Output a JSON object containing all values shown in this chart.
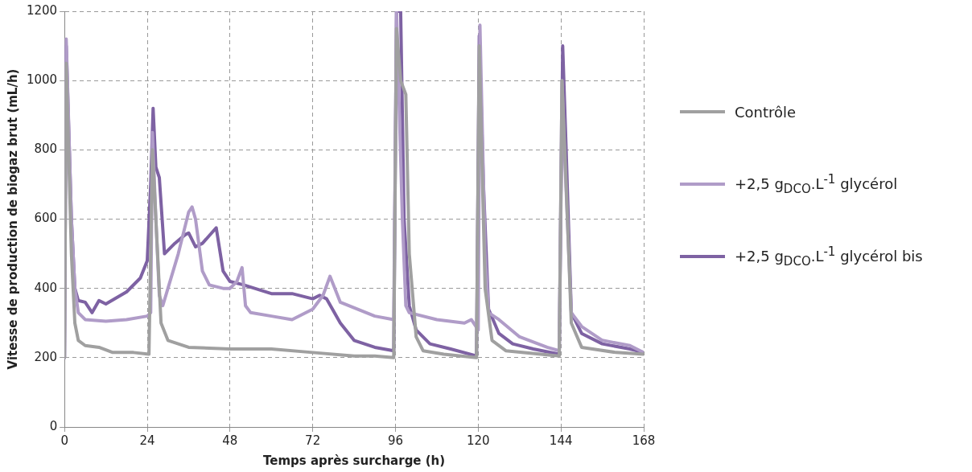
{
  "chart_data": {
    "type": "line",
    "xlabel": "Temps après surcharge (h)",
    "ylabel": "Vitesse de production de biogaz brut (mL/h)",
    "xlim": [
      0,
      168
    ],
    "xticks": [
      0,
      24,
      48,
      72,
      96,
      120,
      144,
      168
    ],
    "ylim": [
      0,
      1200
    ],
    "yticks": [
      0,
      200,
      400,
      600,
      800,
      1000,
      1200
    ],
    "grid": true,
    "legend": "right",
    "marker": "none",
    "line_style": "solid",
    "series": [
      {
        "name": "Contrôle",
        "color": "#a0a0a0",
        "x": [
          0,
          0.5,
          2,
          3,
          4,
          6,
          10,
          14,
          20,
          24.5,
          25.5,
          27,
          28,
          30,
          36,
          48,
          60,
          72,
          84,
          90,
          95.5,
          96.3,
          97.5,
          99,
          100,
          102,
          104,
          110,
          119.5,
          120.3,
          121,
          122,
          124,
          128,
          143.5,
          144.3,
          145.5,
          147,
          150,
          160,
          168
        ],
        "values": [
          200,
          1050,
          500,
          300,
          250,
          235,
          230,
          215,
          215,
          210,
          800,
          500,
          300,
          250,
          230,
          225,
          225,
          215,
          205,
          205,
          200,
          1150,
          1000,
          960,
          500,
          260,
          220,
          210,
          200,
          1100,
          800,
          400,
          250,
          220,
          205,
          1000,
          700,
          300,
          230,
          215,
          210
        ]
      },
      {
        "name": "+2,5 g$_{DCO}$.L$^{-1}$ glycérol",
        "color": "#b09cc8",
        "x": [
          0,
          0.5,
          2,
          3,
          4,
          6,
          12,
          18,
          24,
          25,
          25.5,
          26.5,
          27.5,
          28.5,
          30,
          33,
          36,
          37,
          38,
          40,
          42,
          46,
          48,
          50,
          51.5,
          52.5,
          54,
          60,
          66,
          72,
          75,
          77,
          78,
          80,
          90,
          95.5,
          96.3,
          98,
          99,
          100,
          108,
          116,
          118,
          120,
          120.5,
          122,
          123,
          126,
          132,
          140,
          143.5,
          144.3,
          145,
          147,
          150,
          156,
          164,
          168
        ],
        "values": [
          200,
          1120,
          600,
          400,
          330,
          310,
          305,
          310,
          320,
          330,
          850,
          600,
          380,
          350,
          400,
          500,
          620,
          635,
          600,
          450,
          410,
          400,
          400,
          420,
          460,
          350,
          330,
          320,
          310,
          340,
          380,
          435,
          410,
          360,
          320,
          310,
          1200,
          600,
          350,
          330,
          310,
          300,
          310,
          280,
          1160,
          500,
          330,
          310,
          260,
          230,
          220,
          1000,
          800,
          330,
          290,
          250,
          235,
          215
        ]
      },
      {
        "name": "+2,5 g$_{DCO}$.L$^{-1}$ glycérol bis",
        "color": "#7e62a3",
        "x": [
          0,
          0.5,
          2,
          3,
          4,
          6,
          8,
          10,
          12,
          18,
          22,
          24,
          25,
          25.7,
          26.5,
          27.5,
          29,
          32,
          35,
          36,
          38,
          40,
          44,
          46,
          48,
          52,
          60,
          66,
          72,
          74,
          76,
          80,
          84,
          90,
          95.5,
          96.3,
          97.5,
          98.5,
          100,
          102,
          106,
          112,
          119.5,
          120.3,
          121.5,
          123,
          126,
          130,
          136,
          143.5,
          144.5,
          145.5,
          147,
          150,
          156,
          164,
          168
        ],
        "values": [
          200,
          1100,
          600,
          400,
          365,
          360,
          330,
          365,
          355,
          390,
          430,
          480,
          700,
          920,
          750,
          720,
          500,
          530,
          555,
          560,
          520,
          530,
          575,
          450,
          420,
          410,
          385,
          385,
          370,
          380,
          370,
          300,
          250,
          230,
          220,
          1200,
          1200,
          600,
          350,
          280,
          240,
          225,
          205,
          1130,
          700,
          340,
          270,
          240,
          225,
          210,
          1100,
          800,
          330,
          270,
          240,
          225,
          215
        ]
      }
    ]
  }
}
